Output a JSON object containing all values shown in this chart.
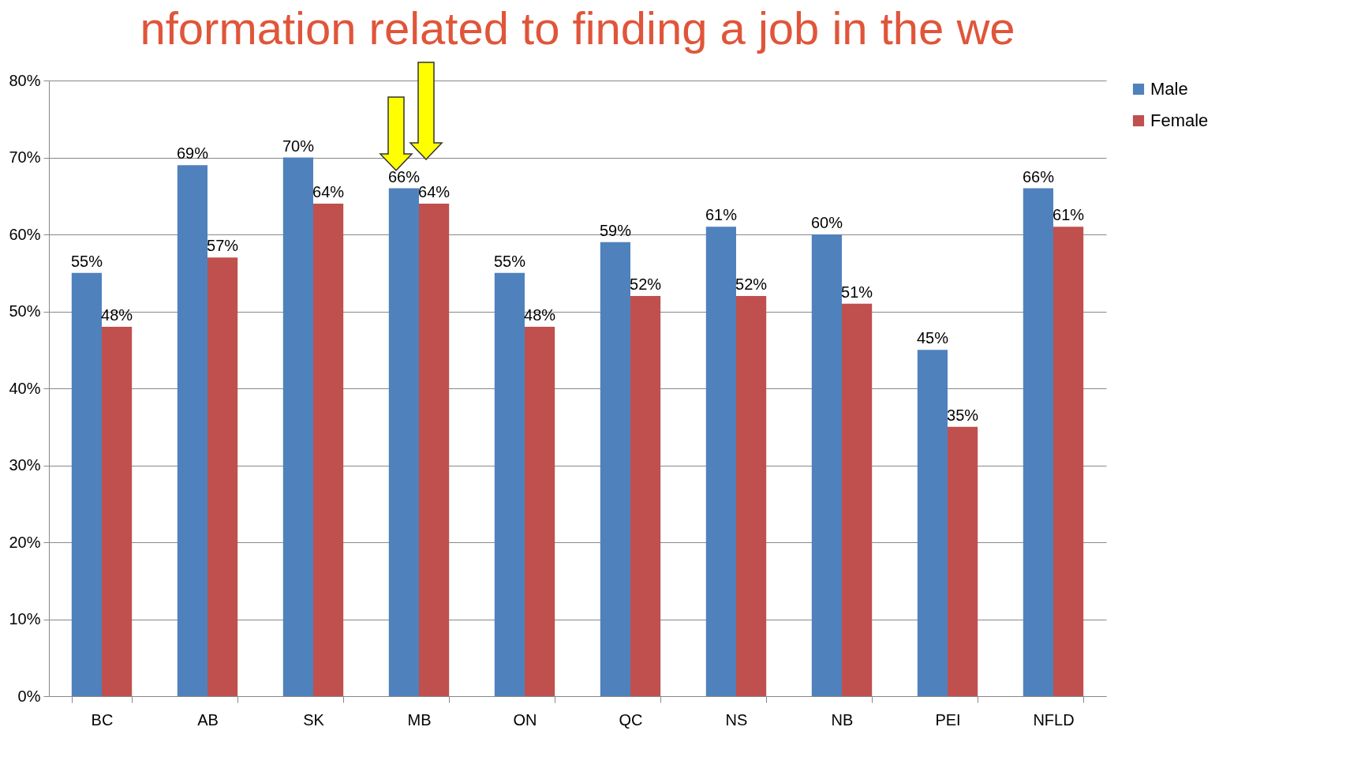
{
  "chart_data": {
    "type": "bar",
    "title": "nformation related to finding a job in the we",
    "categories": [
      "BC",
      "AB",
      "SK",
      "MB",
      "ON",
      "QC",
      "NS",
      "NB",
      "PEI",
      "NFLD"
    ],
    "series": [
      {
        "name": "Male",
        "color": "#4f81bd",
        "values": [
          55,
          69,
          70,
          66,
          55,
          59,
          61,
          60,
          45,
          66
        ],
        "value_labels": [
          "55%",
          "69%",
          "70%",
          "66%",
          "55%",
          "59%",
          "61%",
          "60%",
          "45%",
          "66%"
        ]
      },
      {
        "name": "Female",
        "color": "#c0504d",
        "values": [
          48,
          57,
          64,
          64,
          48,
          52,
          52,
          51,
          35,
          61
        ],
        "value_labels": [
          "48%",
          "57%",
          "64%",
          "64%",
          "48%",
          "52%",
          "52%",
          "51%",
          "35%",
          "61%"
        ]
      }
    ],
    "ylim": [
      0,
      80
    ],
    "yticks": [
      {
        "value": 0,
        "label": "0%"
      },
      {
        "value": 10,
        "label": "10%"
      },
      {
        "value": 20,
        "label": "20%"
      },
      {
        "value": 30,
        "label": "30%"
      },
      {
        "value": 40,
        "label": "40%"
      },
      {
        "value": 50,
        "label": "50%"
      },
      {
        "value": 60,
        "label": "60%"
      },
      {
        "value": 70,
        "label": "70%"
      },
      {
        "value": 80,
        "label": "80%"
      }
    ],
    "grid": "y",
    "legend": "right"
  }
}
